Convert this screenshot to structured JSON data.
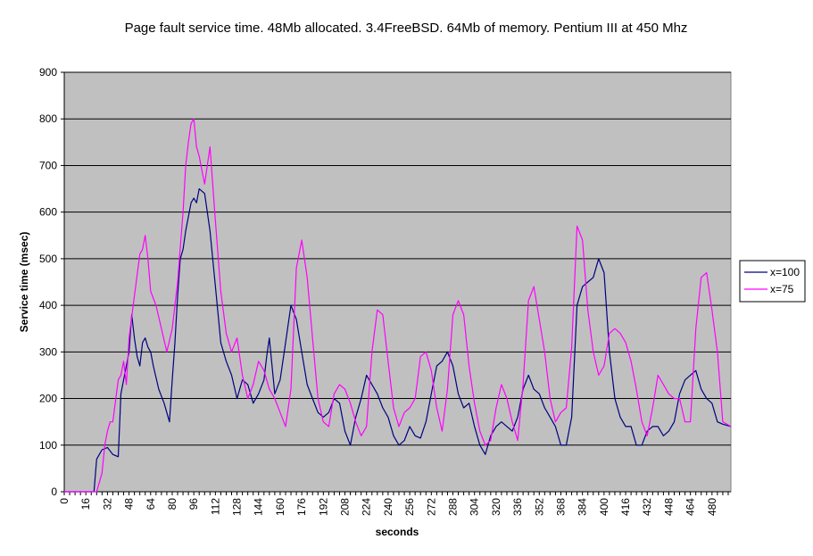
{
  "chart_data": {
    "type": "line",
    "title": "Page fault service time. 48Mb allocated. 3.4FreeBSD. 64Mb of memory. Pentium III at 450 Mhz",
    "xlabel": "seconds",
    "ylabel": "Service time (msec)",
    "xlim": [
      0,
      494
    ],
    "ylim": [
      0,
      900
    ],
    "y_ticks": [
      0,
      100,
      200,
      300,
      400,
      500,
      600,
      700,
      800,
      900
    ],
    "x_tick_step": 4,
    "x_tick_label_step": 16,
    "grid": "horizontal",
    "plot_background": "#c0c0c0",
    "legend_position": "right",
    "series": [
      {
        "name": "x=100",
        "color": "#000080",
        "x": [
          0,
          22,
          24,
          28,
          32,
          36,
          40,
          42,
          44,
          48,
          50,
          52,
          54,
          56,
          58,
          60,
          62,
          64,
          66,
          70,
          74,
          78,
          80,
          82,
          84,
          86,
          88,
          90,
          92,
          94,
          96,
          98,
          100,
          104,
          108,
          112,
          116,
          120,
          124,
          128,
          132,
          136,
          140,
          144,
          148,
          150,
          152,
          156,
          160,
          164,
          168,
          172,
          176,
          180,
          184,
          188,
          192,
          196,
          200,
          204,
          208,
          212,
          216,
          220,
          224,
          228,
          232,
          236,
          240,
          244,
          248,
          252,
          256,
          260,
          264,
          268,
          272,
          276,
          280,
          284,
          288,
          292,
          296,
          300,
          304,
          308,
          312,
          316,
          320,
          324,
          328,
          332,
          336,
          340,
          344,
          348,
          352,
          356,
          360,
          364,
          368,
          372,
          376,
          380,
          384,
          388,
          392,
          396,
          400,
          404,
          408,
          412,
          416,
          420,
          424,
          428,
          432,
          436,
          440,
          444,
          448,
          452,
          456,
          460,
          464,
          468,
          472,
          476,
          480,
          484,
          488,
          494
        ],
        "y": [
          0,
          0,
          70,
          90,
          95,
          80,
          75,
          210,
          240,
          300,
          380,
          330,
          290,
          270,
          320,
          330,
          310,
          300,
          270,
          220,
          190,
          150,
          240,
          320,
          420,
          500,
          520,
          560,
          590,
          620,
          630,
          620,
          650,
          640,
          560,
          440,
          320,
          280,
          250,
          200,
          240,
          230,
          190,
          210,
          240,
          290,
          330,
          210,
          240,
          320,
          400,
          370,
          300,
          230,
          200,
          170,
          160,
          170,
          200,
          190,
          130,
          100,
          160,
          200,
          250,
          230,
          210,
          180,
          160,
          120,
          100,
          110,
          140,
          120,
          115,
          150,
          210,
          270,
          280,
          300,
          270,
          210,
          180,
          190,
          140,
          100,
          80,
          120,
          140,
          150,
          140,
          130,
          160,
          220,
          250,
          220,
          210,
          180,
          160,
          140,
          100,
          100,
          160,
          400,
          440,
          450,
          460,
          500,
          470,
          300,
          200,
          160,
          140,
          140,
          100,
          100,
          130,
          140,
          140,
          120,
          130,
          150,
          210,
          240,
          250,
          260,
          220,
          200,
          190,
          150,
          145,
          140
        ]
      },
      {
        "name": "x=75",
        "color": "#ff00ff",
        "x": [
          0,
          24,
          26,
          28,
          30,
          32,
          34,
          36,
          40,
          42,
          44,
          46,
          48,
          52,
          56,
          58,
          60,
          62,
          64,
          68,
          72,
          76,
          80,
          84,
          88,
          90,
          92,
          94,
          96,
          98,
          100,
          102,
          104,
          106,
          108,
          112,
          116,
          120,
          124,
          128,
          132,
          136,
          140,
          144,
          148,
          152,
          156,
          160,
          164,
          168,
          172,
          176,
          180,
          184,
          188,
          192,
          196,
          200,
          204,
          208,
          212,
          216,
          220,
          224,
          228,
          232,
          236,
          240,
          244,
          248,
          252,
          256,
          260,
          264,
          268,
          272,
          276,
          280,
          284,
          288,
          292,
          296,
          300,
          304,
          308,
          312,
          316,
          320,
          324,
          328,
          332,
          336,
          340,
          344,
          348,
          352,
          356,
          360,
          364,
          368,
          372,
          376,
          380,
          384,
          388,
          392,
          396,
          400,
          404,
          408,
          412,
          416,
          420,
          424,
          428,
          432,
          436,
          440,
          444,
          448,
          452,
          456,
          460,
          464,
          468,
          472,
          476,
          480,
          484,
          488,
          494
        ],
        "y": [
          0,
          0,
          20,
          40,
          100,
          130,
          150,
          150,
          240,
          250,
          280,
          230,
          330,
          420,
          510,
          520,
          550,
          500,
          430,
          400,
          350,
          300,
          350,
          450,
          600,
          700,
          750,
          790,
          800,
          740,
          720,
          690,
          660,
          700,
          740,
          580,
          430,
          340,
          300,
          330,
          250,
          200,
          230,
          280,
          260,
          220,
          200,
          170,
          140,
          220,
          480,
          540,
          460,
          330,
          200,
          150,
          140,
          210,
          230,
          220,
          190,
          150,
          120,
          140,
          300,
          390,
          380,
          280,
          180,
          140,
          170,
          180,
          200,
          290,
          300,
          260,
          180,
          130,
          220,
          380,
          410,
          380,
          270,
          190,
          130,
          100,
          110,
          180,
          230,
          200,
          150,
          110,
          230,
          410,
          440,
          370,
          300,
          200,
          150,
          170,
          180,
          310,
          570,
          540,
          390,
          300,
          250,
          270,
          340,
          350,
          340,
          320,
          280,
          220,
          150,
          120,
          180,
          250,
          230,
          210,
          200,
          200,
          150,
          150,
          350,
          460,
          470,
          390,
          300,
          150,
          140
        ]
      }
    ]
  }
}
